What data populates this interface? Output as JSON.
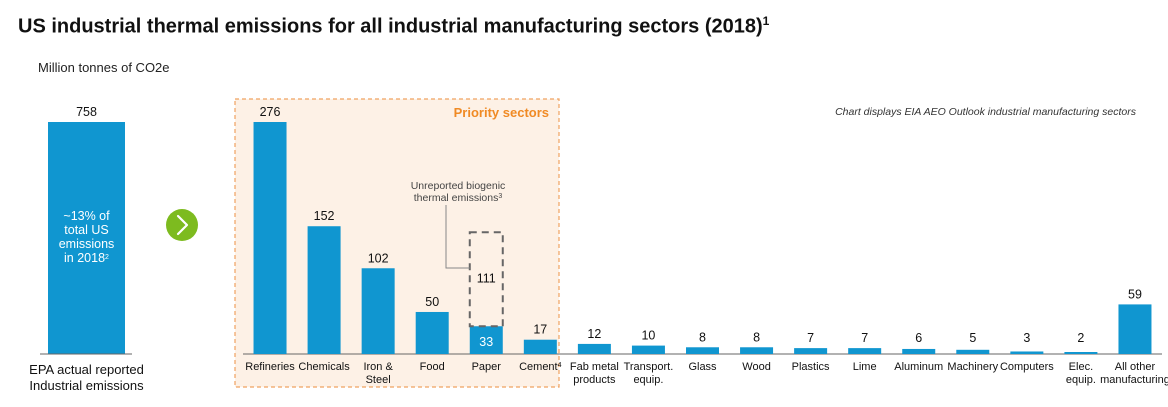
{
  "title": "US industrial thermal emissions for all industrial manufacturing sectors (2018)",
  "title_sup": "1",
  "unit_label": "Million tonnes of CO2e",
  "note": "Chart displays EIA AEO Outlook industrial manufacturing sectors",
  "colors": {
    "bar": "#1096d0",
    "priority_bg": "#fdf1e6",
    "priority_border": "#f0a260",
    "priority_text": "#f08a24",
    "arrow": "#7dbb1f",
    "dashed": "#666666"
  },
  "chart_data": {
    "type": "bar",
    "total": {
      "value": 758,
      "label_lines": [
        "EPA actual reported",
        "Industrial emissions"
      ],
      "inner_text_lines": [
        "~13% of",
        "total US",
        "emissions"
      ],
      "inner_text_last": "in 2018",
      "inner_text_sup": "2"
    },
    "priority_label": "Priority sectors",
    "biogenic": {
      "value": 111,
      "label_lines": [
        "Unreported biogenic",
        "thermal emissions"
      ],
      "label_sup": "3"
    },
    "sectors": [
      {
        "name": [
          "Refineries"
        ],
        "value": 276,
        "priority": true
      },
      {
        "name": [
          "Chemicals"
        ],
        "value": 152,
        "priority": true
      },
      {
        "name": [
          "Iron &",
          "Steel"
        ],
        "value": 102,
        "priority": true
      },
      {
        "name": [
          "Food"
        ],
        "value": 50,
        "priority": true
      },
      {
        "name": [
          "Paper"
        ],
        "value": 33,
        "priority": true,
        "label_inside": true
      },
      {
        "name": [
          "Cement"
        ],
        "name_sup": "4",
        "value": 17,
        "priority": true
      },
      {
        "name": [
          "Fab metal",
          "products"
        ],
        "value": 12
      },
      {
        "name": [
          "Transport.",
          "equip."
        ],
        "value": 10
      },
      {
        "name": [
          "Glass"
        ],
        "value": 8
      },
      {
        "name": [
          "Wood"
        ],
        "value": 8
      },
      {
        "name": [
          "Plastics"
        ],
        "value": 7
      },
      {
        "name": [
          "Lime"
        ],
        "value": 7
      },
      {
        "name": [
          "Aluminum"
        ],
        "value": 6
      },
      {
        "name": [
          "Machinery"
        ],
        "value": 5
      },
      {
        "name": [
          "Computers"
        ],
        "value": 3
      },
      {
        "name": [
          "Elec.",
          "equip."
        ],
        "value": 2
      },
      {
        "name": [
          "All other",
          "manufacturing"
        ],
        "value": 59
      }
    ]
  }
}
